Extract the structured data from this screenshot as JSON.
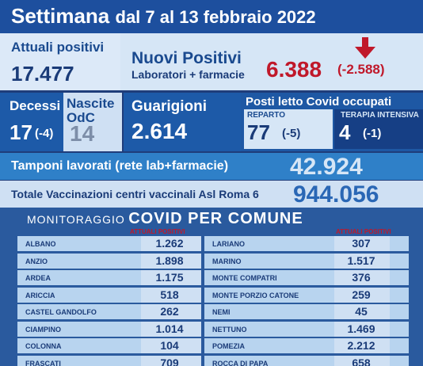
{
  "header": {
    "title": "Settimana",
    "subtitle": "dal 7 al 13 febbraio 2022"
  },
  "attuali": {
    "label": "Attuali positivi",
    "value": "17.477"
  },
  "nuovi": {
    "label": "Nuovi Positivi",
    "sub": "Laboratori + farmacie",
    "value": "6.388",
    "delta": "(-2.588)",
    "arrow_icon": "arrow-down-icon",
    "color": "#c0182a"
  },
  "decessi": {
    "label": "Decessi",
    "value": "17",
    "delta": "(-4)"
  },
  "nascite": {
    "label_line1": "Nascite",
    "label_line2": "OdC",
    "value": "14"
  },
  "guarigioni": {
    "label": "Guarigioni",
    "value": "2.614"
  },
  "posti": {
    "label": "Posti letto Covid occupati",
    "reparto": {
      "label": "REPARTO",
      "value": "77",
      "delta": "(-5)"
    },
    "terapia": {
      "label": "TERAPIA INTENSIVA",
      "value": "4",
      "delta": "(-1)"
    }
  },
  "tamponi": {
    "label": "Tamponi lavorati (rete lab+farmacie)",
    "value": "42.924"
  },
  "vaccinazioni": {
    "label": "Totale Vaccinazioni centri vaccinali Asl Roma 6",
    "value": "944.056"
  },
  "monitoraggio": {
    "title_small": "MONITORAGGIO",
    "title_big": "COVID PER COMUNE",
    "col_header": "ATTUALI POSITIVI",
    "left": [
      {
        "name": "ALBANO",
        "value": "1.262"
      },
      {
        "name": "ANZIO",
        "value": "1.898"
      },
      {
        "name": "ARDEA",
        "value": "1.175"
      },
      {
        "name": "ARICCIA",
        "value": "518"
      },
      {
        "name": "CASTEL GANDOLFO",
        "value": "262"
      },
      {
        "name": "CIAMPINO",
        "value": "1.014"
      },
      {
        "name": "COLONNA",
        "value": "104"
      },
      {
        "name": "FRASCATI",
        "value": "709"
      }
    ],
    "right": [
      {
        "name": "LARIANO",
        "value": "307"
      },
      {
        "name": "MARINO",
        "value": "1.517"
      },
      {
        "name": "MONTE COMPATRI",
        "value": "376"
      },
      {
        "name": "MONTE PORZIO CATONE",
        "value": "259"
      },
      {
        "name": "NEMI",
        "value": "45"
      },
      {
        "name": "NETTUNO",
        "value": "1.469"
      },
      {
        "name": "POMEZIA",
        "value": "2.212"
      },
      {
        "name": "ROCCA DI PAPA",
        "value": "658"
      }
    ]
  }
}
